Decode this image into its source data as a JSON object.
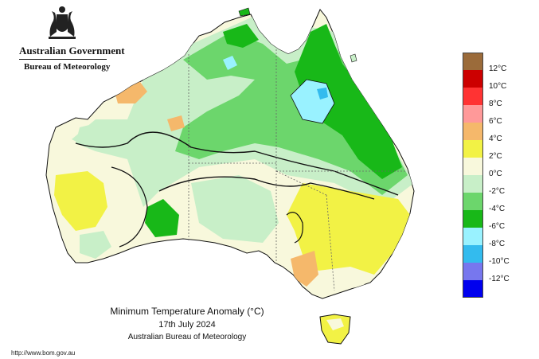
{
  "header": {
    "government": "Australian Government",
    "bureau": "Bureau of Meteorology"
  },
  "map": {
    "title": "Minimum Temperature Anomaly (°C)",
    "date": "17th July 2024",
    "source": "Australian Bureau of Meteorology",
    "url": "http://www.bom.gov.au"
  },
  "legend": {
    "ticks": [
      "12°C",
      "10°C",
      "8°C",
      "6°C",
      "4°C",
      "2°C",
      "0°C",
      "-2°C",
      "-4°C",
      "-6°C",
      "-8°C",
      "-10°C",
      "-12°C"
    ],
    "colors": [
      "#9b6b3a",
      "#cc0000",
      "#ff3333",
      "#ff9999",
      "#f5b86b",
      "#f2f245",
      "#f8f8dc",
      "#c8efc8",
      "#6cd66c",
      "#18b818",
      "#99f2ff",
      "#33bbee",
      "#7777ee",
      "#0000ee"
    ]
  },
  "palette": {
    "land_base": "#f8f8dc",
    "ocean": "#ffffff",
    "contour": "#111111",
    "boundary": "#666666"
  }
}
